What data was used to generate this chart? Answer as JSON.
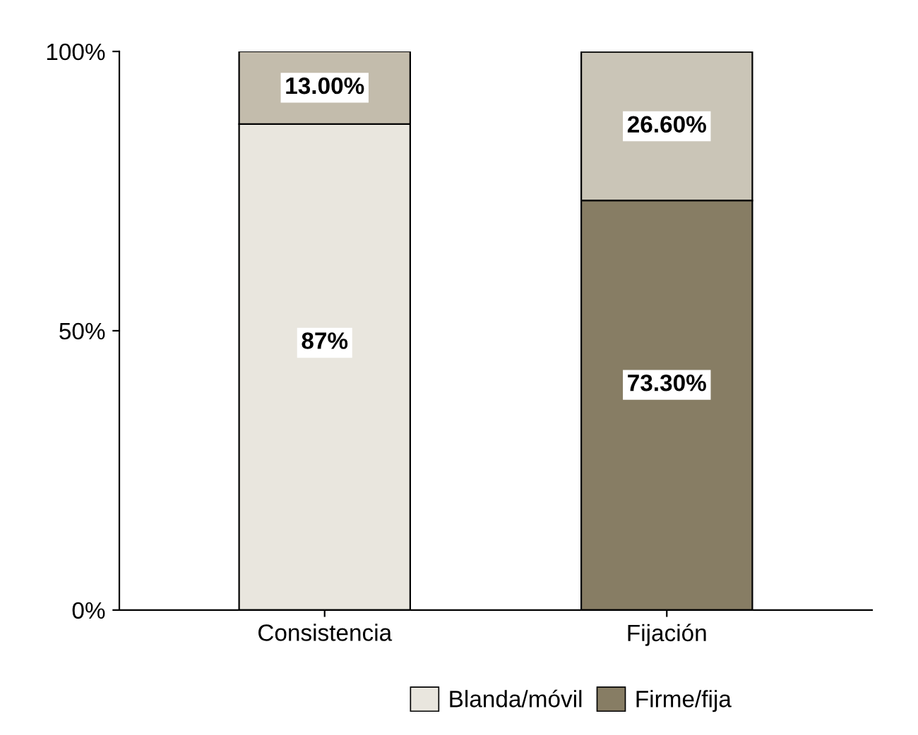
{
  "chart_data": {
    "type": "bar",
    "categories": [
      "Consistencia",
      "Fijación"
    ],
    "series": [
      {
        "name": "Blanda/móvil",
        "color": "#e9e6de",
        "colors": [
          "#e9e6de",
          "#cac5b7"
        ],
        "values": [
          87,
          26.6
        ],
        "base": [
          0,
          73.3
        ],
        "value_labels": [
          "87%",
          "26.60%"
        ]
      },
      {
        "name": "Firme/fija",
        "color": "#877d64",
        "colors": [
          "#c3bcac",
          "#877d64"
        ],
        "values": [
          13,
          73.3
        ],
        "base": [
          87,
          0
        ],
        "value_labels": [
          "13.00%",
          "73.30%"
        ]
      }
    ],
    "ylim": [
      0,
      100
    ],
    "yticks": [
      {
        "value": 0,
        "label": "0%"
      },
      {
        "value": 50,
        "label": "50%"
      },
      {
        "value": 100,
        "label": "100%"
      }
    ],
    "grid": false,
    "legend": "bottom"
  }
}
